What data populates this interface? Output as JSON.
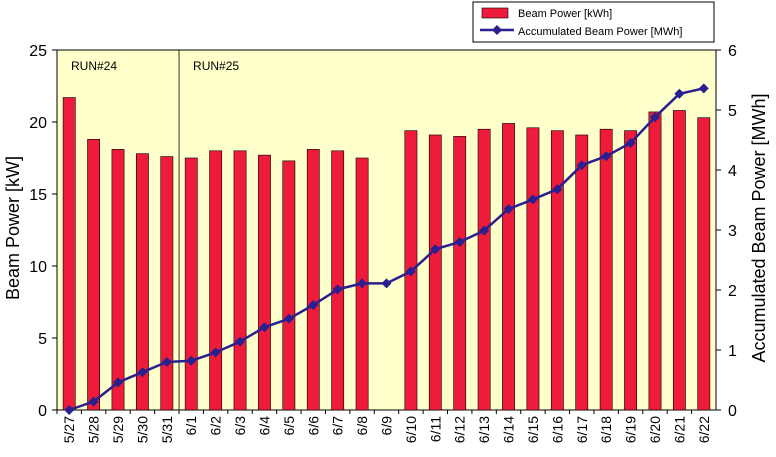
{
  "chart_data": {
    "type": "bar",
    "categories": [
      "5/27",
      "5/28",
      "5/29",
      "5/30",
      "5/31",
      "6/1",
      "6/2",
      "6/3",
      "6/4",
      "6/5",
      "6/6",
      "6/7",
      "6/8",
      "6/9",
      "6/10",
      "6/11",
      "6/12",
      "6/13",
      "6/14",
      "6/15",
      "6/16",
      "6/17",
      "6/18",
      "6/19",
      "6/20",
      "6/21",
      "6/22"
    ],
    "series": [
      {
        "name": "Beam Power [kWh]",
        "kind": "bar",
        "axis": "left",
        "color": "#ee1c3a",
        "values": [
          21.7,
          18.8,
          18.1,
          17.8,
          17.6,
          17.5,
          18.0,
          18.0,
          17.7,
          17.3,
          18.1,
          18.0,
          17.5,
          null,
          19.4,
          19.1,
          19.0,
          19.5,
          19.9,
          19.6,
          19.4,
          19.1,
          19.5,
          19.4,
          20.7,
          20.8,
          20.3
        ]
      },
      {
        "name": "Accumulated Beam Power [MWh]",
        "kind": "line",
        "axis": "right",
        "color": "#2a1f8f",
        "values": [
          0.0,
          0.14,
          0.46,
          0.63,
          0.8,
          0.82,
          0.96,
          1.14,
          1.38,
          1.52,
          1.75,
          2.01,
          2.11,
          2.11,
          2.31,
          2.68,
          2.8,
          2.99,
          3.35,
          3.51,
          3.68,
          4.08,
          4.23,
          4.45,
          4.88,
          5.27,
          5.36
        ]
      }
    ],
    "ylabel": "Beam Power [kW]",
    "ylabel_right": "Accumulated Beam Power [MWh]",
    "ylim": [
      0,
      25
    ],
    "yticks": [
      "0",
      "5",
      "10",
      "15",
      "20",
      "25"
    ],
    "ylim_right": [
      0,
      6
    ],
    "yticks_right": [
      "0",
      "1",
      "2",
      "3",
      "4",
      "5",
      "6"
    ],
    "plot_background": "#ffffcc",
    "annotations": [
      {
        "text": "RUN#24",
        "category": "5/27"
      },
      {
        "text": "RUN#25",
        "category": "6/1"
      }
    ],
    "run_divider_after": "5/31",
    "legend_position": "top-right",
    "grid": false
  }
}
